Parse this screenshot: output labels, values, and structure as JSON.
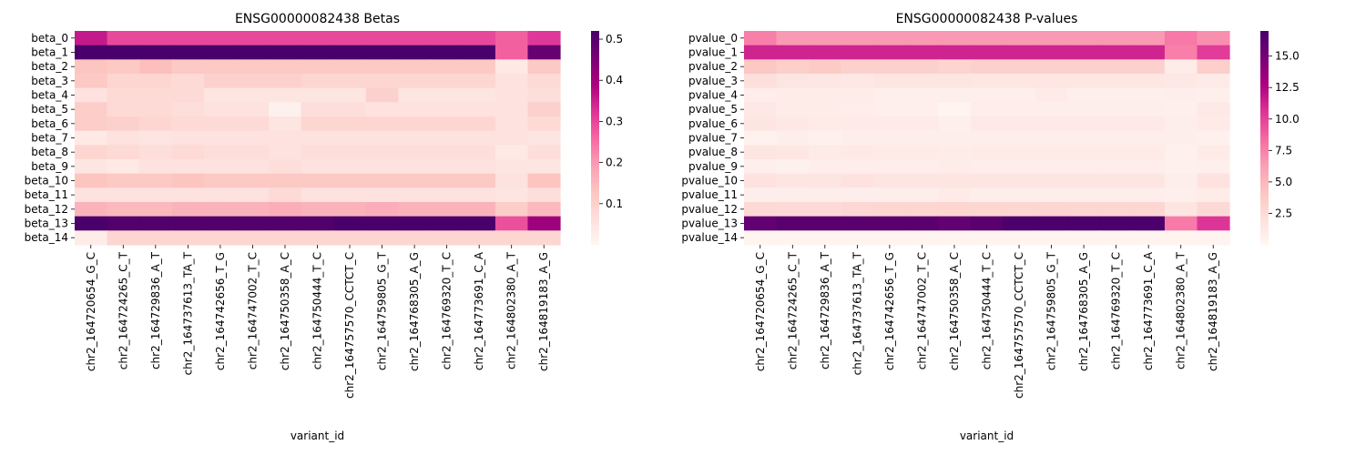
{
  "chart_data": [
    {
      "type": "heatmap",
      "title": "ENSG00000082438 Betas",
      "xlabel": "variant_id",
      "ylabel": "",
      "x": [
        "chr2_164720654_G_C",
        "chr2_164724265_C_T",
        "chr2_164729836_A_T",
        "chr2_164737613_TA_T",
        "chr2_164742656_T_G",
        "chr2_164747002_T_C",
        "chr2_164750358_A_C",
        "chr2_164750444_T_C",
        "chr2_164757570_CCTCT_C",
        "chr2_164759805_G_T",
        "chr2_164768305_A_G",
        "chr2_164769320_T_C",
        "chr2_164773691_C_A",
        "chr2_164802380_A_T",
        "chr2_164819183_A_G"
      ],
      "y": [
        "beta_0",
        "beta_1",
        "beta_2",
        "beta_3",
        "beta_4",
        "beta_5",
        "beta_6",
        "beta_7",
        "beta_8",
        "beta_9",
        "beta_10",
        "beta_11",
        "beta_12",
        "beta_13",
        "beta_14"
      ],
      "colorbar": {
        "min": 0.0,
        "max": 0.52,
        "ticks": [
          "0.1",
          "0.2",
          "0.3",
          "0.4",
          "0.5"
        ],
        "tick_values": [
          0.1,
          0.2,
          0.3,
          0.4,
          0.5
        ]
      },
      "colormap": [
        "#fff7f3",
        "#fde0dd",
        "#fcc5c0",
        "#fa9fb5",
        "#f768a1",
        "#dd3497",
        "#ae017e",
        "#7a0177",
        "#49006a"
      ],
      "z": [
        [
          0.36,
          0.3,
          0.3,
          0.3,
          0.3,
          0.3,
          0.3,
          0.3,
          0.3,
          0.3,
          0.3,
          0.3,
          0.3,
          0.27,
          0.32
        ],
        [
          0.52,
          0.52,
          0.52,
          0.52,
          0.52,
          0.52,
          0.52,
          0.52,
          0.52,
          0.52,
          0.52,
          0.52,
          0.52,
          0.27,
          0.48
        ],
        [
          0.13,
          0.12,
          0.14,
          0.12,
          0.12,
          0.12,
          0.12,
          0.12,
          0.12,
          0.12,
          0.12,
          0.12,
          0.12,
          0.04,
          0.12
        ],
        [
          0.12,
          0.09,
          0.09,
          0.08,
          0.1,
          0.1,
          0.1,
          0.09,
          0.09,
          0.09,
          0.09,
          0.09,
          0.09,
          0.06,
          0.08
        ],
        [
          0.06,
          0.08,
          0.08,
          0.08,
          0.05,
          0.05,
          0.05,
          0.05,
          0.05,
          0.1,
          0.05,
          0.05,
          0.05,
          0.06,
          0.07
        ],
        [
          0.11,
          0.08,
          0.08,
          0.07,
          0.06,
          0.06,
          0.02,
          0.07,
          0.07,
          0.06,
          0.06,
          0.06,
          0.06,
          0.06,
          0.1
        ],
        [
          0.11,
          0.1,
          0.09,
          0.08,
          0.08,
          0.08,
          0.05,
          0.09,
          0.09,
          0.09,
          0.09,
          0.09,
          0.09,
          0.06,
          0.08
        ],
        [
          0.04,
          0.06,
          0.05,
          0.06,
          0.06,
          0.06,
          0.06,
          0.06,
          0.06,
          0.06,
          0.06,
          0.06,
          0.06,
          0.06,
          0.05
        ],
        [
          0.09,
          0.08,
          0.07,
          0.08,
          0.07,
          0.07,
          0.06,
          0.07,
          0.07,
          0.07,
          0.07,
          0.07,
          0.07,
          0.04,
          0.07
        ],
        [
          0.05,
          0.04,
          0.06,
          0.06,
          0.06,
          0.06,
          0.07,
          0.06,
          0.06,
          0.06,
          0.06,
          0.06,
          0.06,
          0.05,
          0.05
        ],
        [
          0.13,
          0.12,
          0.12,
          0.13,
          0.12,
          0.12,
          0.12,
          0.12,
          0.12,
          0.12,
          0.12,
          0.12,
          0.12,
          0.06,
          0.13
        ],
        [
          0.06,
          0.06,
          0.06,
          0.06,
          0.06,
          0.06,
          0.08,
          0.06,
          0.06,
          0.06,
          0.06,
          0.06,
          0.06,
          0.05,
          0.07
        ],
        [
          0.16,
          0.15,
          0.15,
          0.16,
          0.16,
          0.16,
          0.17,
          0.16,
          0.16,
          0.17,
          0.16,
          0.16,
          0.16,
          0.11,
          0.15
        ],
        [
          0.52,
          0.51,
          0.51,
          0.51,
          0.51,
          0.51,
          0.51,
          0.51,
          0.52,
          0.52,
          0.52,
          0.52,
          0.52,
          0.29,
          0.41
        ],
        [
          0.03,
          0.09,
          0.09,
          0.09,
          0.09,
          0.09,
          0.09,
          0.09,
          0.09,
          0.09,
          0.09,
          0.09,
          0.09,
          0.09,
          0.09
        ]
      ]
    },
    {
      "type": "heatmap",
      "title": "ENSG00000082438 P-values",
      "xlabel": "variant_id",
      "ylabel": "",
      "x": [
        "chr2_164720654_G_C",
        "chr2_164724265_C_T",
        "chr2_164729836_A_T",
        "chr2_164737613_TA_T",
        "chr2_164742656_T_G",
        "chr2_164747002_T_C",
        "chr2_164750358_A_C",
        "chr2_164750444_T_C",
        "chr2_164757570_CCTCT_C",
        "chr2_164759805_G_T",
        "chr2_164768305_A_G",
        "chr2_164769320_T_C",
        "chr2_164773691_C_A",
        "chr2_164802380_A_T",
        "chr2_164819183_A_G"
      ],
      "y": [
        "pvalue_0",
        "pvalue_1",
        "pvalue_2",
        "pvalue_3",
        "pvalue_4",
        "pvalue_5",
        "pvalue_6",
        "pvalue_7",
        "pvalue_8",
        "pvalue_9",
        "pvalue_10",
        "pvalue_11",
        "pvalue_12",
        "pvalue_13",
        "pvalue_14"
      ],
      "colorbar": {
        "min": 0.0,
        "max": 17.0,
        "ticks": [
          "2.5",
          "5.0",
          "7.5",
          "10.0",
          "12.5",
          "15.0"
        ],
        "tick_values": [
          2.5,
          5.0,
          7.5,
          10.0,
          12.5,
          15.0
        ]
      },
      "colormap": [
        "#fff7f3",
        "#fde0dd",
        "#fcc5c0",
        "#fa9fb5",
        "#f768a1",
        "#dd3497",
        "#ae017e",
        "#7a0177",
        "#49006a"
      ],
      "z": [
        [
          7.6,
          6.6,
          6.6,
          6.6,
          6.6,
          6.6,
          6.6,
          6.6,
          6.6,
          6.6,
          6.6,
          6.6,
          6.6,
          7.9,
          7.0
        ],
        [
          11.3,
          11.3,
          11.3,
          11.3,
          11.3,
          11.3,
          11.3,
          11.3,
          11.3,
          11.3,
          11.3,
          11.3,
          11.3,
          7.6,
          10.3
        ],
        [
          4.0,
          3.5,
          3.8,
          3.3,
          3.3,
          3.3,
          3.1,
          3.3,
          3.3,
          3.3,
          3.3,
          3.3,
          3.3,
          1.0,
          3.5
        ],
        [
          2.2,
          1.6,
          1.5,
          1.4,
          1.6,
          1.6,
          1.6,
          1.5,
          1.5,
          1.5,
          1.5,
          1.5,
          1.5,
          1.4,
          1.1
        ],
        [
          0.9,
          1.0,
          1.0,
          1.0,
          0.7,
          0.7,
          0.7,
          0.7,
          0.7,
          1.1,
          0.7,
          0.7,
          0.7,
          0.8,
          0.7
        ],
        [
          1.4,
          1.0,
          1.0,
          0.9,
          0.7,
          0.7,
          0.3,
          0.9,
          0.9,
          0.8,
          0.8,
          0.8,
          0.8,
          0.7,
          1.3
        ],
        [
          1.6,
          1.4,
          1.2,
          1.2,
          1.2,
          1.2,
          0.7,
          1.3,
          1.3,
          1.3,
          1.3,
          1.3,
          1.3,
          0.8,
          1.2
        ],
        [
          0.5,
          0.8,
          0.6,
          0.8,
          0.8,
          0.8,
          0.8,
          0.8,
          0.8,
          0.8,
          0.8,
          0.8,
          0.8,
          0.8,
          0.6
        ],
        [
          1.7,
          1.5,
          1.2,
          1.3,
          1.2,
          1.2,
          1.0,
          1.2,
          1.2,
          1.2,
          1.2,
          1.2,
          1.2,
          0.6,
          1.1
        ],
        [
          0.7,
          0.6,
          0.9,
          0.9,
          0.9,
          0.9,
          1.0,
          0.9,
          0.9,
          0.9,
          0.9,
          0.9,
          0.9,
          0.6,
          0.7
        ],
        [
          1.9,
          1.6,
          1.7,
          1.9,
          1.7,
          1.7,
          1.7,
          1.7,
          1.7,
          1.7,
          1.7,
          1.7,
          1.7,
          0.8,
          1.9
        ],
        [
          0.8,
          0.8,
          0.8,
          0.8,
          0.8,
          0.8,
          1.1,
          0.8,
          0.8,
          0.8,
          0.8,
          0.8,
          0.8,
          0.7,
          1.0
        ],
        [
          2.7,
          2.6,
          2.6,
          2.8,
          2.9,
          2.9,
          3.0,
          2.9,
          2.9,
          3.0,
          2.9,
          2.9,
          2.9,
          1.7,
          2.7
        ],
        [
          15.9,
          16.3,
          16.3,
          16.3,
          16.3,
          16.3,
          15.9,
          16.3,
          16.9,
          16.9,
          16.9,
          16.9,
          16.9,
          7.8,
          10.6
        ],
        [
          0.3,
          0.3,
          0.3,
          0.3,
          0.3,
          0.3,
          0.3,
          0.3,
          0.3,
          0.3,
          0.3,
          0.3,
          0.3,
          0.3,
          0.3
        ]
      ]
    }
  ]
}
